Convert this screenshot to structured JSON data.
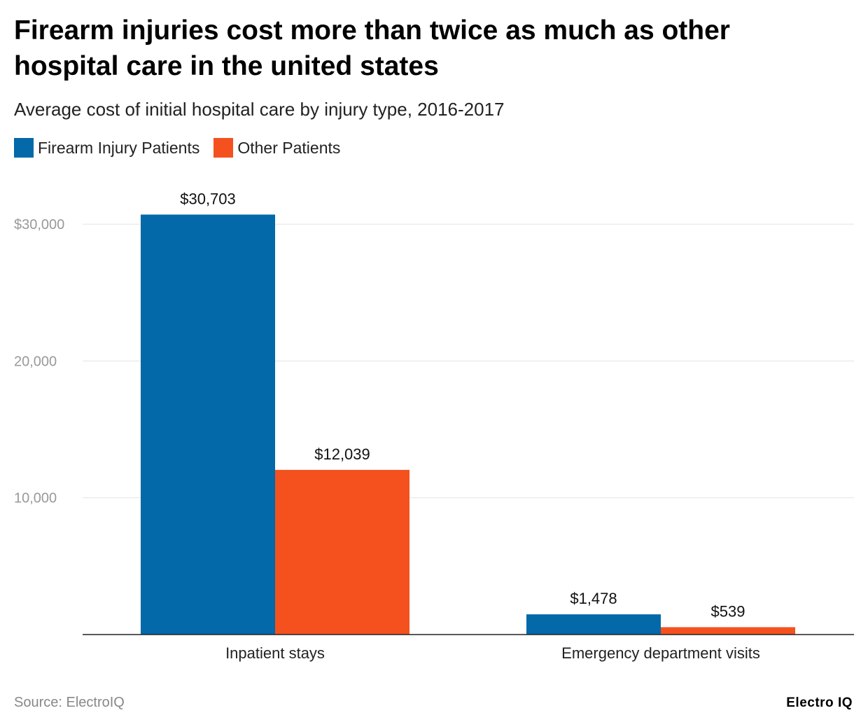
{
  "header": {
    "title": "Firearm injuries cost more than twice as much as other hospital care in the united states",
    "subtitle": "Average cost of initial hospital care by injury type, 2016-2017"
  },
  "legend": [
    {
      "label": "Firearm Injury Patients",
      "color": "#0369a8"
    },
    {
      "label": "Other Patients",
      "color": "#f4511e"
    }
  ],
  "footer": {
    "source": "Source: ElectroIQ",
    "brand": "Electro IQ"
  },
  "chart_data": {
    "type": "bar",
    "title": "Firearm injuries cost more than twice as much as other hospital care in the united states",
    "subtitle": "Average cost of initial hospital care by injury type, 2016-2017",
    "categories": [
      "Inpatient stays",
      "Emergency department visits"
    ],
    "series": [
      {
        "name": "Firearm Injury Patients",
        "values": [
          30703,
          1478
        ],
        "labels": [
          "$30,703",
          "$1,478"
        ],
        "color": "#0369a8"
      },
      {
        "name": "Other Patients",
        "values": [
          12039,
          539
        ],
        "labels": [
          "$12,039",
          "$539"
        ],
        "color": "#f4511e"
      }
    ],
    "yticks": [
      {
        "value": 10000,
        "label": "10,000"
      },
      {
        "value": 20000,
        "label": "20,000"
      },
      {
        "value": 30000,
        "label": "$30,000"
      }
    ],
    "ylim": [
      0,
      30703
    ],
    "xlabel": "",
    "ylabel": "",
    "grid": true,
    "legend_position": "top-left"
  }
}
